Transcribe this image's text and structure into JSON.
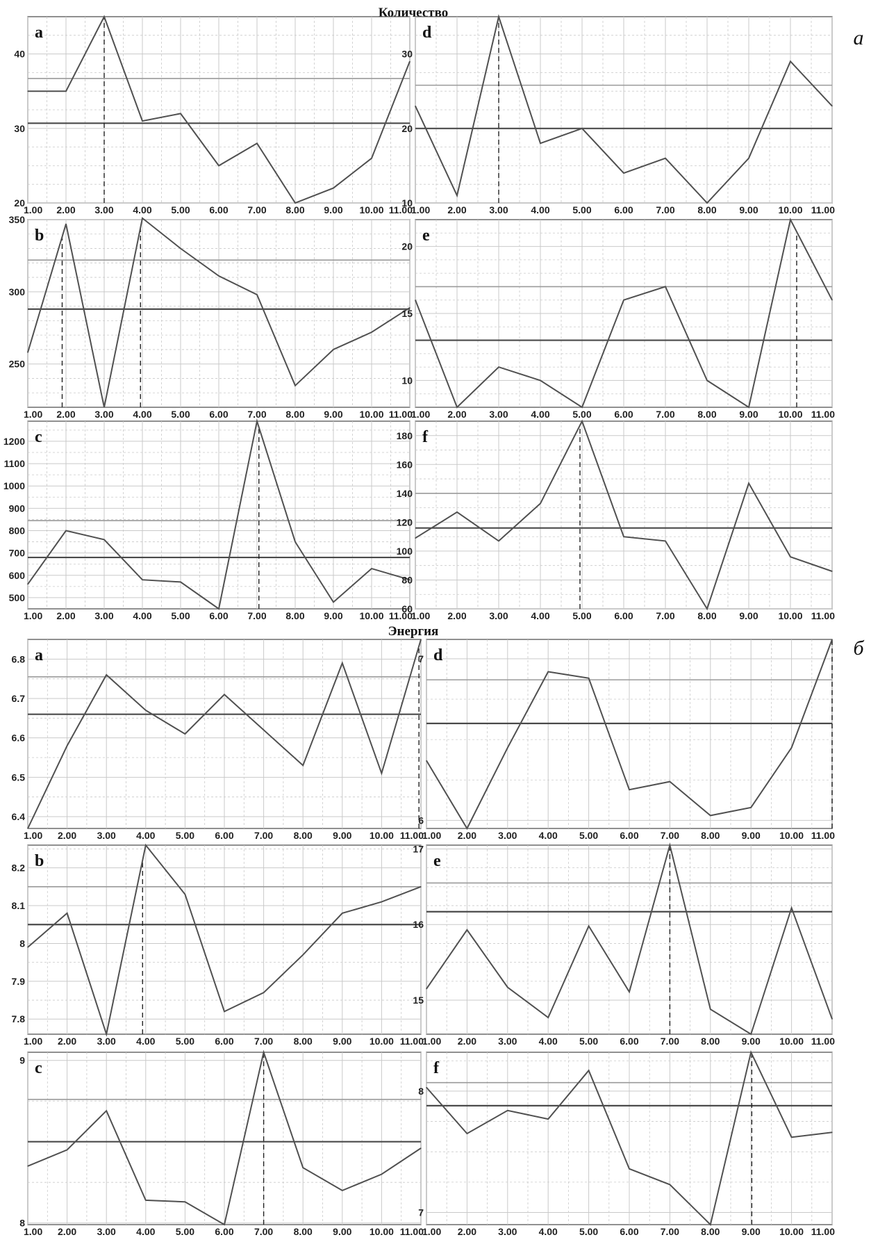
{
  "sections": {
    "quantity": {
      "title": "Количество",
      "side_label": "а"
    },
    "energy": {
      "title": "Энергия",
      "side_label": "б"
    }
  },
  "colors": {
    "series": "#505050",
    "mean_line": "#4a4a4a",
    "upper_line": "#9a9a9a",
    "grid": "#c9c9c9"
  },
  "chart_data": [
    {
      "id": "q-a",
      "section": "quantity",
      "label": "a",
      "type": "line",
      "x": [
        1,
        2,
        3,
        4,
        5,
        6,
        7,
        8,
        9,
        10,
        11
      ],
      "values": [
        35,
        35,
        45,
        31,
        32,
        25,
        28,
        20,
        22,
        26,
        39
      ],
      "ylim": [
        20,
        45
      ],
      "yticks": [
        20,
        30,
        40
      ],
      "yticks_minor": [
        22.5,
        25,
        27.5,
        32.5,
        35,
        37.5,
        42.5
      ],
      "mean": 30.7,
      "upper": 36.7,
      "peaks": [
        3
      ],
      "grid": true
    },
    {
      "id": "q-d",
      "section": "quantity",
      "label": "d",
      "type": "line",
      "x": [
        1,
        2,
        3,
        4,
        5,
        6,
        7,
        8,
        9,
        10,
        11
      ],
      "values": [
        23,
        11,
        35,
        18,
        20,
        14,
        16,
        10,
        16,
        29,
        23
      ],
      "ylim": [
        10,
        35
      ],
      "yticks": [
        10,
        20,
        30
      ],
      "yticks_minor": [
        12.5,
        15,
        17.5,
        22.5,
        25,
        27.5,
        32.5
      ],
      "mean": 20,
      "upper": 25.8,
      "peaks": [
        3
      ],
      "grid": true
    },
    {
      "id": "q-b",
      "section": "quantity",
      "label": "b",
      "type": "line",
      "x": [
        1,
        2,
        3,
        4,
        5,
        6,
        7,
        8,
        9,
        10,
        11
      ],
      "values": [
        258,
        347,
        220,
        351,
        330,
        311,
        298,
        235,
        260,
        272,
        289
      ],
      "ylim": [
        220,
        350
      ],
      "yticks": [
        250,
        300,
        350
      ],
      "yticks_minor": [
        230,
        240,
        260,
        270,
        280,
        290,
        310,
        320,
        330,
        340
      ],
      "mean": 288,
      "upper": 322,
      "peaks": [
        1.9,
        3.95
      ],
      "grid": true
    },
    {
      "id": "q-e",
      "section": "quantity",
      "label": "e",
      "type": "line",
      "x": [
        1,
        2,
        3,
        4,
        5,
        6,
        7,
        8,
        9,
        10,
        11
      ],
      "values": [
        16,
        8,
        11,
        10,
        8,
        16,
        17,
        10,
        8,
        22,
        16
      ],
      "ylim": [
        8,
        22
      ],
      "yticks": [
        10,
        15,
        20
      ],
      "yticks_minor": [
        9,
        11,
        12,
        13,
        14,
        16,
        17,
        18,
        19,
        21
      ],
      "mean": 13,
      "upper": 17,
      "peaks": [
        10.15
      ],
      "grid": true
    },
    {
      "id": "q-c",
      "section": "quantity",
      "label": "c",
      "type": "line",
      "x": [
        1,
        2,
        3,
        4,
        5,
        6,
        7,
        8,
        9,
        10,
        11
      ],
      "values": [
        560,
        800,
        760,
        580,
        570,
        450,
        1290,
        750,
        480,
        630,
        580
      ],
      "ylim": [
        450,
        1290
      ],
      "yticks": [
        500,
        600,
        700,
        800,
        900,
        1000,
        1100,
        1200
      ],
      "yticks_minor": [
        550,
        650,
        750,
        850,
        950,
        1050,
        1150,
        1250
      ],
      "mean": 680,
      "upper": 845,
      "peaks": [
        7.05
      ],
      "grid": true
    },
    {
      "id": "q-f",
      "section": "quantity",
      "label": "f",
      "type": "line",
      "x": [
        1,
        2,
        3,
        4,
        5,
        6,
        7,
        8,
        9,
        10,
        11
      ],
      "values": [
        109,
        127,
        107,
        133,
        190,
        110,
        107,
        60,
        147,
        96,
        86
      ],
      "ylim": [
        60,
        190
      ],
      "yticks": [
        60,
        80,
        100,
        120,
        140,
        160,
        180
      ],
      "yticks_minor": [
        70,
        90,
        110,
        130,
        150,
        170
      ],
      "mean": 116,
      "upper": 140,
      "peaks": [
        4.95
      ],
      "grid": true
    },
    {
      "id": "e-a",
      "section": "energy",
      "label": "a",
      "type": "line",
      "x": [
        1,
        2,
        3,
        4,
        5,
        6,
        7,
        8,
        9,
        10,
        11
      ],
      "values": [
        6.37,
        6.58,
        6.76,
        6.67,
        6.61,
        6.71,
        6.62,
        6.53,
        6.79,
        6.51,
        6.85
      ],
      "ylim": [
        6.37,
        6.85
      ],
      "yticks": [
        6.4,
        6.5,
        6.6,
        6.7,
        6.8
      ],
      "yticks_minor": [
        6.45,
        6.55,
        6.65,
        6.75
      ],
      "mean": 6.66,
      "upper": 6.755,
      "peaks": [
        10.95
      ],
      "grid": true
    },
    {
      "id": "e-d",
      "section": "energy",
      "label": "d",
      "type": "line",
      "x": [
        1,
        2,
        3,
        4,
        5,
        6,
        7,
        8,
        9,
        10,
        11
      ],
      "values": [
        6.37,
        5.95,
        6.45,
        6.92,
        6.88,
        6.19,
        6.24,
        6.03,
        6.08,
        6.45,
        7.12
      ],
      "ylim": [
        5.95,
        7.12
      ],
      "yticks": [
        6,
        7
      ],
      "yticks_minor": [
        6.25,
        6.5,
        6.75
      ],
      "mean": 6.6,
      "upper": 6.87,
      "peaks": [
        11
      ],
      "grid": true
    },
    {
      "id": "e-b",
      "section": "energy",
      "label": "b",
      "type": "line",
      "x": [
        1,
        2,
        3,
        4,
        5,
        6,
        7,
        8,
        9,
        10,
        11
      ],
      "values": [
        7.99,
        8.08,
        7.76,
        8.26,
        8.13,
        7.82,
        7.87,
        7.97,
        8.08,
        8.11,
        8.15
      ],
      "ylim": [
        7.76,
        8.26
      ],
      "yticks": [
        7.8,
        7.9,
        8,
        8.1,
        8.2
      ],
      "yticks_minor": [
        7.85,
        7.95,
        8.05,
        8.15,
        8.25
      ],
      "mean": 8.05,
      "upper": 8.15,
      "peaks": [
        3.92
      ],
      "grid": true
    },
    {
      "id": "e-e",
      "section": "energy",
      "label": "e",
      "type": "line",
      "x": [
        1,
        2,
        3,
        4,
        5,
        6,
        7,
        8,
        9,
        10,
        11
      ],
      "values": [
        15.15,
        15.93,
        15.17,
        14.77,
        15.98,
        15.11,
        17.05,
        14.88,
        14.55,
        16.22,
        14.75
      ],
      "ylim": [
        14.55,
        17.05
      ],
      "yticks": [
        15,
        16,
        17
      ],
      "yticks_minor": [
        15.25,
        15.5,
        15.75,
        16.25,
        16.5,
        16.75
      ],
      "mean": 16.17,
      "upper": 16.55,
      "peaks": [
        7
      ],
      "grid": true
    },
    {
      "id": "e-c",
      "section": "energy",
      "label": "c",
      "type": "line",
      "x": [
        1,
        2,
        3,
        4,
        5,
        6,
        7,
        8,
        9,
        10,
        11
      ],
      "values": [
        8.35,
        8.45,
        8.69,
        8.14,
        8.13,
        7.99,
        9.05,
        8.34,
        8.2,
        8.3,
        8.46
      ],
      "ylim": [
        7.99,
        9.05
      ],
      "yticks": [
        8,
        9
      ],
      "yticks_minor": [
        8.25,
        8.5,
        8.75
      ],
      "mean": 8.5,
      "upper": 8.76,
      "peaks": [
        7
      ],
      "grid": true
    },
    {
      "id": "e-f",
      "section": "energy",
      "label": "f",
      "type": "line",
      "x": [
        1,
        2,
        3,
        4,
        5,
        6,
        7,
        8,
        9,
        10,
        11
      ],
      "values": [
        8.03,
        7.65,
        7.84,
        7.77,
        8.17,
        7.36,
        7.23,
        6.9,
        8.32,
        7.62,
        7.66
      ],
      "ylim": [
        6.9,
        8.32
      ],
      "yticks": [
        7,
        8
      ],
      "yticks_minor": [
        7.25,
        7.5,
        7.75,
        8.25
      ],
      "mean": 7.88,
      "upper": 8.07,
      "peaks": [
        9.02
      ],
      "grid": true
    }
  ],
  "x_tick_labels": [
    "1.00",
    "2.00",
    "3.00",
    "4.00",
    "5.00",
    "6.00",
    "7.00",
    "8.00",
    "9.00",
    "10.00",
    "11.00"
  ]
}
